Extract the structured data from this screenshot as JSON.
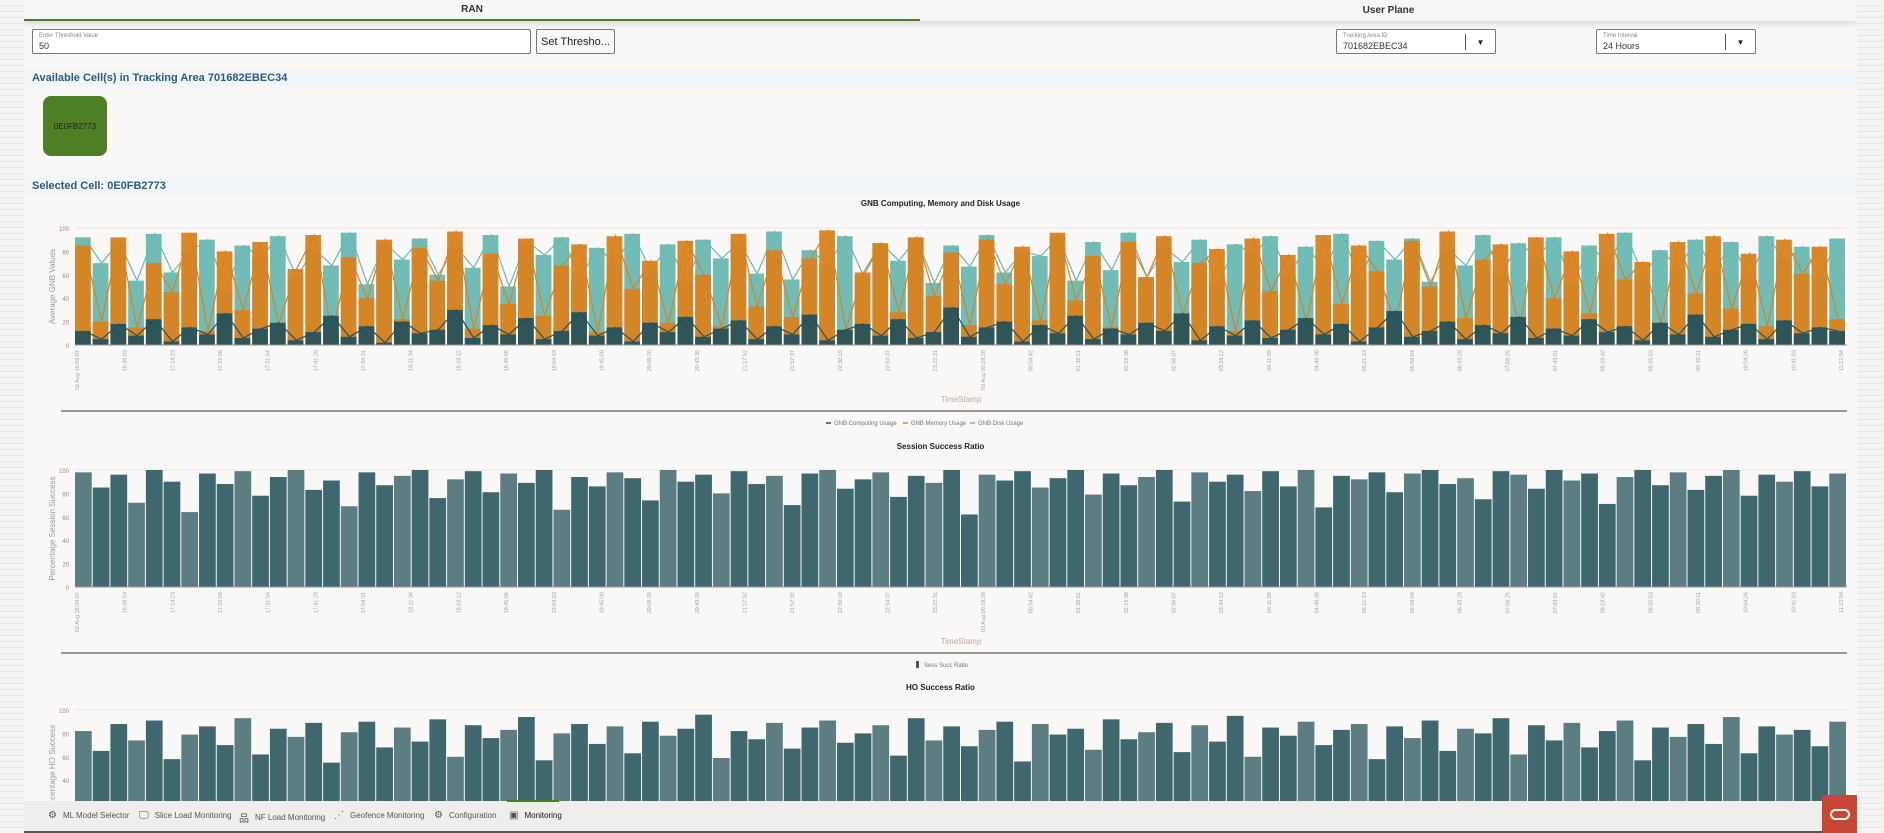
{
  "tabs": [
    {
      "label": "RAN",
      "active": true
    },
    {
      "label": "User Plane",
      "active": false
    }
  ],
  "threshold": {
    "label": "Enter Threshold Value",
    "value": "50",
    "button": "Set Thresho..."
  },
  "tracking_area": {
    "label": "Tracking Area ID",
    "value": "701682EBEC34"
  },
  "time_interval": {
    "label": "Time Interval",
    "value": "24 Hours"
  },
  "available_heading": "Available Cell(s) in Tracking Area 701682EBEC34",
  "cells": [
    {
      "id": "0E0FB2773",
      "color": "#4f7f25"
    }
  ],
  "selected_heading": "Selected Cell: 0E0FB2773",
  "nav": [
    {
      "label": "ML Model Selector",
      "icon": "brain-gear-icon"
    },
    {
      "label": "Slice Load Monitoring",
      "icon": "monitor-chart-icon"
    },
    {
      "label": "NF Load Monitoring",
      "icon": "network-tree-icon"
    },
    {
      "label": "Geofence Monitoring",
      "icon": "geofence-icon"
    },
    {
      "label": "Configuration",
      "icon": "gear-icon"
    },
    {
      "label": "Monitoring",
      "icon": "dashboard-icon",
      "active": true
    }
  ],
  "colors": {
    "accent": "#4a7a2a",
    "heading": "#2a5d80",
    "oracle": "#c74634"
  },
  "chart_data": [
    {
      "type": "line",
      "title": "GNB Computing, Memory and Disk Usage",
      "xlabel": "TimeStamp",
      "ylabel": "Average GNB Values",
      "ylim": [
        0,
        100
      ],
      "yticks": [
        0,
        20,
        40,
        60,
        80,
        100
      ],
      "legend": "bottom",
      "grid": false,
      "xticks": [
        "02 Aug 16:09:07",
        "16:38:03",
        "17:14:23",
        "17:22:56",
        "17:31:54",
        "17:41:28",
        "17:54:31",
        "18:11:34",
        "18:18:12",
        "18:45:56",
        "19:04:53",
        "19:45:08",
        "20:08:20",
        "20:43:35",
        "21:17:52",
        "21:57:37",
        "22:30:19",
        "22:54:37",
        "23:22:31",
        "03 Aug 00:18:28",
        "00:54:42",
        "01:38:51",
        "02:19:38",
        "02:56:07",
        "03:34:12",
        "04:11:09",
        "04:48:38",
        "05:21:13",
        "05:58:04",
        "06:33:28",
        "07:08:25",
        "07:43:01",
        "08:19:42",
        "08:55:53",
        "09:30:11",
        "10:04:26",
        "10:41:03",
        "11:12:54"
      ],
      "series": [
        {
          "name": "GNB Computing Usage",
          "color": "#25525a",
          "values": [
            12,
            5,
            18,
            8,
            22,
            3,
            15,
            9,
            27,
            6,
            14,
            19,
            4,
            11,
            25,
            7,
            16,
            2,
            20,
            10,
            13,
            30,
            6,
            17,
            9,
            23,
            5,
            12,
            28,
            8,
            15,
            3,
            19,
            11,
            24,
            7,
            14,
            21,
            5,
            16,
            9,
            26,
            4,
            13,
            18,
            8,
            22,
            6,
            11,
            32,
            7,
            15,
            20,
            3,
            17,
            10,
            25,
            5,
            14,
            9,
            19,
            12,
            27,
            4,
            16,
            8,
            21,
            6,
            13,
            23,
            9,
            18,
            3,
            15,
            29,
            7,
            12,
            20,
            5,
            17,
            10,
            24,
            6,
            14,
            8,
            22,
            11,
            16,
            4,
            19,
            9,
            26,
            7,
            13,
            18,
            5,
            21,
            10,
            15,
            12
          ]
        },
        {
          "name": "GNB Memory Usage",
          "color": "#d9821f",
          "values": [
            85,
            20,
            92,
            15,
            70,
            45,
            96,
            12,
            80,
            30,
            88,
            18,
            65,
            94,
            10,
            75,
            40,
            90,
            22,
            83,
            55,
            97,
            14,
            78,
            35,
            91,
            25,
            68,
            86,
            11,
            93,
            48,
            72,
            19,
            89,
            60,
            16,
            95,
            33,
            81,
            24,
            74,
            98,
            13,
            62,
            87,
            28,
            92,
            42,
            79,
            17,
            90,
            52,
            84,
            21,
            96,
            38,
            76,
            15,
            88,
            58,
            93,
            26,
            70,
            82,
            12,
            91,
            46,
            77,
            20,
            94,
            35,
            85,
            63,
            18,
            89,
            50,
            97,
            23,
            73,
            86,
            14,
            92,
            40,
            80,
            27,
            95,
            56,
            71,
            19,
            88,
            44,
            93,
            31,
            78,
            16,
            90,
            61,
            84,
            22
          ]
        },
        {
          "name": "GNB Disk Usage",
          "color": "#6ab8b2",
          "values": [
            92,
            70,
            88,
            55,
            95,
            62,
            80,
            90,
            48,
            85,
            75,
            93,
            58,
            82,
            68,
            96,
            52,
            87,
            73,
            91,
            60,
            84,
            66,
            94,
            50,
            89,
            77,
            92,
            57,
            83,
            70,
            95,
            63,
            86,
            54,
            90,
            74,
            88,
            61,
            97,
            56,
            81,
            69,
            93,
            59,
            87,
            72,
            91,
            53,
            85,
            67,
            94,
            62,
            80,
            76,
            92,
            55,
            88,
            64,
            96,
            58,
            83,
            71,
            90,
            51,
            86,
            78,
            93,
            60,
            84,
            65,
            95,
            57,
            89,
            73,
            91,
            54,
            82,
            68,
            94,
            61,
            87,
            75,
            92,
            52,
            85,
            70,
            96,
            59,
            81,
            66,
            90,
            63,
            88,
            56,
            93,
            72,
            84,
            58,
            91
          ]
        }
      ]
    },
    {
      "type": "bar",
      "title": "Session Success Ratio",
      "xlabel": "TimeStamp",
      "ylabel": "Percentage Session Success",
      "ylim": [
        0,
        100
      ],
      "yticks": [
        0,
        20,
        40,
        60,
        80,
        100
      ],
      "legend": "bottom",
      "grid": false,
      "xticks": [
        "02 Aug 16:09:07",
        "16:38:03",
        "17:14:23",
        "17:22:56",
        "17:31:54",
        "17:41:28",
        "17:54:31",
        "18:11:34",
        "18:18:12",
        "18:45:56",
        "19:04:53",
        "19:45:08",
        "20:08:20",
        "20:43:35",
        "21:17:52",
        "21:57:37",
        "22:30:19",
        "22:54:37",
        "23:22:31",
        "03 Aug 00:18:28",
        "00:54:42",
        "01:38:51",
        "02:19:38",
        "02:56:07",
        "03:34:12",
        "04:11:09",
        "04:48:38",
        "05:21:13",
        "05:58:04",
        "06:33:28",
        "07:08:25",
        "07:43:01",
        "08:19:42",
        "08:55:53",
        "09:30:11",
        "10:04:26",
        "10:41:03",
        "11:12:54"
      ],
      "series": [
        {
          "name": "Sess Succ Ratio",
          "color": "#355f66",
          "values": [
            98,
            85,
            96,
            72,
            100,
            90,
            64,
            97,
            88,
            99,
            78,
            94,
            100,
            83,
            91,
            69,
            98,
            87,
            95,
            100,
            76,
            92,
            99,
            81,
            97,
            89,
            100,
            66,
            94,
            86,
            98,
            93,
            74,
            100,
            90,
            96,
            80,
            99,
            88,
            95,
            70,
            97,
            100,
            84,
            92,
            98,
            77,
            95,
            89,
            100,
            62,
            96,
            91,
            99,
            85,
            93,
            100,
            79,
            97,
            87,
            94,
            100,
            73,
            98,
            90,
            96,
            82,
            99,
            86,
            100,
            68,
            95,
            92,
            98,
            81,
            97,
            100,
            88,
            93,
            75,
            99,
            96,
            84,
            100,
            91,
            97,
            71,
            94,
            100,
            87,
            98,
            83,
            95,
            100,
            78,
            96,
            90,
            99,
            86,
            97
          ]
        }
      ]
    },
    {
      "type": "bar",
      "title": "HO Success Ratio",
      "ylabel": "Percentage HO Success",
      "ylim": [
        0,
        100
      ],
      "yticks": [
        40,
        60,
        80,
        100
      ],
      "grid": false,
      "series": [
        {
          "color": "#355f66",
          "values": [
            82,
            65,
            88,
            74,
            91,
            58,
            79,
            86,
            70,
            93,
            62,
            84,
            77,
            89,
            55,
            81,
            90,
            68,
            85,
            73,
            92,
            60,
            87,
            76,
            83,
            94,
            57,
            80,
            88,
            71,
            86,
            63,
            90,
            78,
            84,
            96,
            59,
            82,
            75,
            89,
            67,
            85,
            91,
            72,
            80,
            87,
            61,
            93,
            74,
            86,
            69,
            83,
            90,
            56,
            88,
            79,
            84,
            66,
            92,
            75,
            81,
            89,
            64,
            87,
            73,
            95,
            60,
            85,
            78,
            90,
            70,
            83,
            88,
            58,
            86,
            76,
            91,
            65,
            84,
            80,
            93,
            62,
            87,
            74,
            89,
            68,
            82,
            91,
            57,
            85,
            77,
            88,
            71,
            94,
            63,
            86,
            79,
            83,
            69,
            90
          ]
        }
      ]
    }
  ]
}
